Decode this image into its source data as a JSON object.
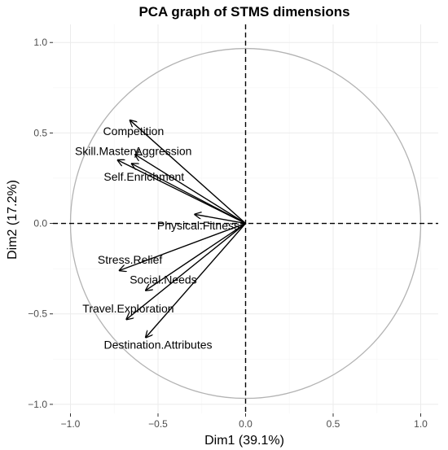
{
  "chart_data": {
    "type": "scatter",
    "title": "PCA graph of STMS dimensions",
    "xlabel": "Dim1 (39.1%)",
    "ylabel": "Dim2 (17.2%)",
    "xlim": [
      -1.1,
      1.1
    ],
    "ylim": [
      -1.05,
      1.1
    ],
    "xticks": [
      -1.0,
      -0.5,
      0.0,
      0.5,
      1.0
    ],
    "yticks": [
      -1.0,
      -0.5,
      0.0,
      0.5,
      1.0
    ],
    "xtick_labels": [
      "−1.0",
      "−0.5",
      "0.0",
      "0.5",
      "1.0"
    ],
    "ytick_labels": [
      "−1.0",
      "−0.5",
      "0.0",
      "0.5",
      "1.0"
    ],
    "grid": true,
    "correlation_circle": {
      "radius": 1.0
    },
    "variables": [
      {
        "name": "Competition",
        "x": -0.66,
        "y": 0.57,
        "label_x": -0.64,
        "label_y": 0.51
      },
      {
        "name": "Skill.Mastery",
        "x": -0.73,
        "y": 0.35,
        "label_x": -0.79,
        "label_y": 0.4
      },
      {
        "name": "Aggression",
        "x": -0.63,
        "y": 0.38,
        "label_x": -0.47,
        "label_y": 0.4
      },
      {
        "name": "Self.Enrichment",
        "x": -0.65,
        "y": 0.33,
        "label_x": -0.58,
        "label_y": 0.26
      },
      {
        "name": "Physical.Fitness",
        "x": -0.29,
        "y": 0.05,
        "label_x": -0.27,
        "label_y": -0.01
      },
      {
        "name": "Stress.Relief",
        "x": -0.72,
        "y": -0.26,
        "label_x": -0.66,
        "label_y": -0.2
      },
      {
        "name": "Social.Needs",
        "x": -0.57,
        "y": -0.37,
        "label_x": -0.47,
        "label_y": -0.31
      },
      {
        "name": "Travel.Exploration",
        "x": -0.68,
        "y": -0.53,
        "label_x": -0.67,
        "label_y": -0.47
      },
      {
        "name": "Destination.Attributes",
        "x": -0.57,
        "y": -0.63,
        "label_x": -0.5,
        "label_y": -0.67
      }
    ]
  }
}
